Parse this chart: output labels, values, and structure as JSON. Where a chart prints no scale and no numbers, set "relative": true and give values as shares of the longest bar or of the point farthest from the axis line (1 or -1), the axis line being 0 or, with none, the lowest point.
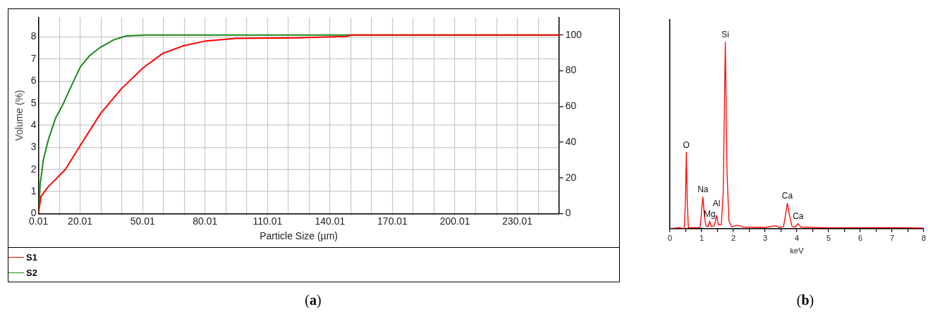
{
  "chart_data": [
    {
      "type": "line",
      "xlabel": "Particle Size (µm)",
      "ylabel": "Volume (%)",
      "xlim": [
        0.01,
        250
      ],
      "ylim": [
        0,
        8.9
      ],
      "y2lim": [
        0,
        110
      ],
      "xticks": [
        0.01,
        {
          "value": 10.01,
          "label": null
        },
        20.01,
        {
          "value": 30.01,
          "label": null
        },
        {
          "value": 40.01,
          "label": null
        },
        50.01,
        {
          "value": 60.01,
          "label": null
        },
        {
          "value": 70.01,
          "label": null
        },
        80.01,
        {
          "value": 90.01,
          "label": null
        },
        {
          "value": 100.01,
          "label": null
        },
        110.01,
        {
          "value": 120.01,
          "label": null
        },
        {
          "value": 130.01,
          "label": null
        },
        140.01,
        {
          "value": 150.01,
          "label": null
        },
        {
          "value": 160.01,
          "label": null
        },
        170.01,
        {
          "value": 180.01,
          "label": null
        },
        {
          "value": 190.01,
          "label": null
        },
        200.01,
        {
          "value": 210.01,
          "label": null
        },
        {
          "value": 220.01,
          "label": null
        },
        230.01,
        {
          "value": 240.01,
          "label": null
        }
      ],
      "yticks": [
        0,
        1,
        2,
        3,
        4,
        5,
        6,
        7,
        8
      ],
      "y2ticks": [
        0,
        20,
        40,
        60,
        80,
        100
      ],
      "grid": true,
      "legend": "bottom",
      "annotations": [
        "(a)"
      ],
      "series": [
        {
          "name": "S1",
          "color": "#ff0000",
          "axis": "y2",
          "x": [
            0.01,
            1.2,
            4.7,
            12.9,
            20.2,
            29.9,
            39.9,
            50.2,
            59.8,
            69.7,
            80.3,
            95,
            124,
            148,
            150,
            250
          ],
          "values": [
            0,
            9.6,
            15.1,
            24.7,
            38.4,
            56.2,
            70,
            81.6,
            89.8,
            94,
            96.7,
            98.1,
            98.4,
            99.2,
            100,
            100
          ]
        },
        {
          "name": "S2",
          "color": "#1a8a1a",
          "axis": "y2",
          "x": [
            0.01,
            0.83,
            2.35,
            4.7,
            8.2,
            11.7,
            15.2,
            20.2,
            24.6,
            29.9,
            36.3,
            42.2,
            51.6,
            250
          ],
          "values": [
            0,
            16.5,
            30.2,
            41.2,
            53.5,
            61,
            70,
            82.3,
            88.5,
            93.3,
            97.4,
            99.5,
            100,
            100
          ]
        }
      ]
    },
    {
      "type": "line",
      "xlabel": "keV",
      "relative": true,
      "xlim": [
        0,
        8
      ],
      "xticks": [
        0,
        {
          "value": 0.5,
          "label": null
        },
        1,
        {
          "value": 1.5,
          "label": null
        },
        2,
        {
          "value": 2.5,
          "label": null
        },
        3,
        {
          "value": 3.5,
          "label": null
        },
        4,
        {
          "value": 4.5,
          "label": null
        },
        5,
        {
          "value": 5.5,
          "label": null
        },
        6,
        {
          "value": 6.5,
          "label": null
        },
        7,
        {
          "value": 7.5,
          "label": null
        },
        8
      ],
      "annotations": [
        {
          "text": "O",
          "x": 0.516,
          "y": 0.409
        },
        {
          "text": "Na",
          "x": 1.04,
          "y": 0.169
        },
        {
          "text": "Mg",
          "x": 1.25,
          "y": 0.039
        },
        {
          "text": "Al",
          "x": 1.47,
          "y": 0.071
        },
        {
          "text": "Si",
          "x": 1.745,
          "y": 1
        },
        {
          "text": "Ca",
          "x": 3.7,
          "y": 0.136
        },
        {
          "text": "Ca",
          "x": 4.04,
          "y": 0.026
        },
        "(b)"
      ],
      "series": [
        {
          "color": "#ff0000",
          "x": [
            0,
            0.3,
            0.45,
            0.49,
            0.516,
            0.545,
            0.58,
            0.95,
            1.0,
            1.04,
            1.08,
            1.13,
            1.2,
            1.25,
            1.31,
            1.4,
            1.47,
            1.53,
            1.62,
            1.68,
            1.745,
            1.8,
            1.86,
            1.95,
            2.13,
            2.3,
            3.0,
            3.33,
            3.45,
            3.58,
            3.64,
            3.7,
            3.77,
            3.85,
            3.95,
            4.04,
            4.12,
            5,
            6.5,
            8
          ],
          "values": [
            0,
            0.005,
            0,
            0.15,
            0.409,
            0.15,
            0.005,
            0.005,
            0.1,
            0.169,
            0.08,
            0.015,
            0.01,
            0.039,
            0.01,
            0.015,
            0.071,
            0.02,
            0.02,
            0.2,
            1,
            0.3,
            0.04,
            0.01,
            0.018,
            0.008,
            0.006,
            0.015,
            0.006,
            0.01,
            0.07,
            0.136,
            0.07,
            0.01,
            0.008,
            0.026,
            0.008,
            0.004,
            0.005,
            0.003
          ]
        }
      ]
    }
  ]
}
